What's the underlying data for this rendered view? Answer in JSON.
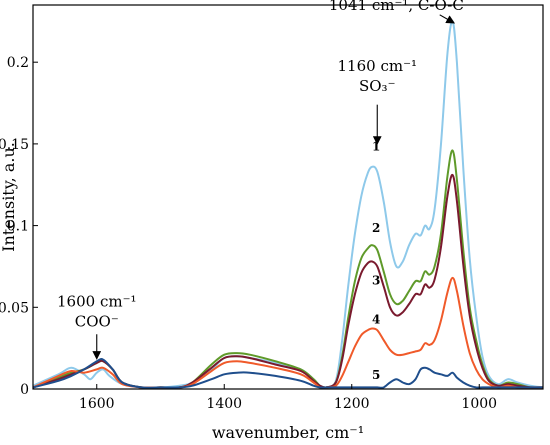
{
  "chart_data": {
    "type": "line",
    "xlabel": "wavenumber, cm⁻¹",
    "ylabel": "Intensity, a.u.",
    "xlim": [
      1700,
      900
    ],
    "ylim": [
      0,
      0.235
    ],
    "x_reversed": true,
    "grid": false,
    "legend": "none",
    "xticks": [
      1600,
      1400,
      1200,
      1000
    ],
    "yticks": [
      0,
      0.05,
      0.1,
      0.15,
      0.2
    ],
    "ytick_labels": [
      "0",
      "0.05",
      "0.1",
      "0.15",
      "0.2"
    ],
    "series": [
      {
        "name": "1",
        "color": "#8ec9ea",
        "points": [
          [
            1700,
            0.002
          ],
          [
            1660,
            0.009
          ],
          [
            1640,
            0.013
          ],
          [
            1620,
            0.009
          ],
          [
            1610,
            0.006
          ],
          [
            1600,
            0.01
          ],
          [
            1590,
            0.012
          ],
          [
            1580,
            0.008
          ],
          [
            1560,
            0.003
          ],
          [
            1530,
            0.001
          ],
          [
            1500,
            0.001
          ],
          [
            1470,
            0.002
          ],
          [
            1450,
            0.004
          ],
          [
            1420,
            0.012
          ],
          [
            1400,
            0.019
          ],
          [
            1380,
            0.02
          ],
          [
            1360,
            0.019
          ],
          [
            1320,
            0.016
          ],
          [
            1280,
            0.012
          ],
          [
            1260,
            0.006
          ],
          [
            1250,
            0.002
          ],
          [
            1240,
            0.001
          ],
          [
            1225,
            0.005
          ],
          [
            1215,
            0.03
          ],
          [
            1205,
            0.065
          ],
          [
            1195,
            0.095
          ],
          [
            1185,
            0.118
          ],
          [
            1175,
            0.132
          ],
          [
            1168,
            0.136
          ],
          [
            1160,
            0.133
          ],
          [
            1150,
            0.115
          ],
          [
            1140,
            0.09
          ],
          [
            1130,
            0.075
          ],
          [
            1120,
            0.078
          ],
          [
            1110,
            0.088
          ],
          [
            1100,
            0.095
          ],
          [
            1092,
            0.094
          ],
          [
            1085,
            0.1
          ],
          [
            1078,
            0.098
          ],
          [
            1070,
            0.11
          ],
          [
            1060,
            0.15
          ],
          [
            1050,
            0.205
          ],
          [
            1042,
            0.225
          ],
          [
            1035,
            0.2
          ],
          [
            1025,
            0.135
          ],
          [
            1015,
            0.08
          ],
          [
            1005,
            0.045
          ],
          [
            995,
            0.02
          ],
          [
            985,
            0.008
          ],
          [
            970,
            0.003
          ],
          [
            955,
            0.006
          ],
          [
            940,
            0.004
          ],
          [
            920,
            0.002
          ],
          [
            900,
            0.001
          ]
        ]
      },
      {
        "name": "2",
        "color": "#5f9a2a",
        "points": [
          [
            1700,
            0.001
          ],
          [
            1660,
            0.007
          ],
          [
            1640,
            0.01
          ],
          [
            1620,
            0.012
          ],
          [
            1600,
            0.016
          ],
          [
            1590,
            0.017
          ],
          [
            1575,
            0.012
          ],
          [
            1560,
            0.004
          ],
          [
            1530,
            0.001
          ],
          [
            1500,
            0.001
          ],
          [
            1470,
            0.001
          ],
          [
            1450,
            0.004
          ],
          [
            1420,
            0.015
          ],
          [
            1400,
            0.021
          ],
          [
            1380,
            0.022
          ],
          [
            1360,
            0.021
          ],
          [
            1320,
            0.017
          ],
          [
            1280,
            0.012
          ],
          [
            1260,
            0.006
          ],
          [
            1250,
            0.002
          ],
          [
            1240,
            0.001
          ],
          [
            1225,
            0.004
          ],
          [
            1215,
            0.02
          ],
          [
            1205,
            0.045
          ],
          [
            1195,
            0.066
          ],
          [
            1185,
            0.08
          ],
          [
            1175,
            0.086
          ],
          [
            1168,
            0.088
          ],
          [
            1160,
            0.085
          ],
          [
            1150,
            0.072
          ],
          [
            1140,
            0.058
          ],
          [
            1130,
            0.052
          ],
          [
            1120,
            0.054
          ],
          [
            1110,
            0.06
          ],
          [
            1100,
            0.066
          ],
          [
            1092,
            0.066
          ],
          [
            1085,
            0.072
          ],
          [
            1078,
            0.07
          ],
          [
            1070,
            0.075
          ],
          [
            1060,
            0.095
          ],
          [
            1050,
            0.13
          ],
          [
            1042,
            0.146
          ],
          [
            1035,
            0.128
          ],
          [
            1025,
            0.085
          ],
          [
            1015,
            0.05
          ],
          [
            1005,
            0.03
          ],
          [
            995,
            0.015
          ],
          [
            985,
            0.006
          ],
          [
            970,
            0.002
          ],
          [
            955,
            0.004
          ],
          [
            940,
            0.003
          ],
          [
            920,
            0.001
          ],
          [
            900,
            0.001
          ]
        ]
      },
      {
        "name": "3",
        "color": "#7a1a2e",
        "points": [
          [
            1700,
            0.001
          ],
          [
            1660,
            0.006
          ],
          [
            1640,
            0.009
          ],
          [
            1620,
            0.012
          ],
          [
            1600,
            0.016
          ],
          [
            1590,
            0.017
          ],
          [
            1575,
            0.012
          ],
          [
            1560,
            0.004
          ],
          [
            1530,
            0.001
          ],
          [
            1500,
            0.001
          ],
          [
            1470,
            0.001
          ],
          [
            1450,
            0.004
          ],
          [
            1420,
            0.013
          ],
          [
            1400,
            0.019
          ],
          [
            1380,
            0.02
          ],
          [
            1360,
            0.019
          ],
          [
            1320,
            0.015
          ],
          [
            1280,
            0.011
          ],
          [
            1260,
            0.005
          ],
          [
            1250,
            0.002
          ],
          [
            1240,
            0.001
          ],
          [
            1225,
            0.004
          ],
          [
            1215,
            0.018
          ],
          [
            1205,
            0.04
          ],
          [
            1195,
            0.058
          ],
          [
            1185,
            0.071
          ],
          [
            1175,
            0.077
          ],
          [
            1168,
            0.078
          ],
          [
            1160,
            0.075
          ],
          [
            1150,
            0.063
          ],
          [
            1140,
            0.05
          ],
          [
            1130,
            0.045
          ],
          [
            1120,
            0.047
          ],
          [
            1110,
            0.052
          ],
          [
            1100,
            0.058
          ],
          [
            1092,
            0.058
          ],
          [
            1085,
            0.064
          ],
          [
            1078,
            0.062
          ],
          [
            1070,
            0.067
          ],
          [
            1060,
            0.087
          ],
          [
            1050,
            0.118
          ],
          [
            1042,
            0.131
          ],
          [
            1035,
            0.115
          ],
          [
            1025,
            0.076
          ],
          [
            1015,
            0.045
          ],
          [
            1005,
            0.026
          ],
          [
            995,
            0.013
          ],
          [
            985,
            0.005
          ],
          [
            970,
            0.002
          ],
          [
            955,
            0.003
          ],
          [
            940,
            0.002
          ],
          [
            920,
            0.001
          ],
          [
            900,
            0.001
          ]
        ]
      },
      {
        "name": "4",
        "color": "#f05a2a",
        "points": [
          [
            1700,
            0.001
          ],
          [
            1660,
            0.008
          ],
          [
            1640,
            0.011
          ],
          [
            1620,
            0.01
          ],
          [
            1600,
            0.012
          ],
          [
            1590,
            0.013
          ],
          [
            1575,
            0.009
          ],
          [
            1560,
            0.003
          ],
          [
            1530,
            0.001
          ],
          [
            1500,
            0.001
          ],
          [
            1470,
            0.001
          ],
          [
            1450,
            0.003
          ],
          [
            1420,
            0.011
          ],
          [
            1400,
            0.016
          ],
          [
            1380,
            0.017
          ],
          [
            1360,
            0.016
          ],
          [
            1320,
            0.013
          ],
          [
            1280,
            0.009
          ],
          [
            1260,
            0.004
          ],
          [
            1250,
            0.001
          ],
          [
            1240,
            0.001
          ],
          [
            1225,
            0.002
          ],
          [
            1215,
            0.008
          ],
          [
            1205,
            0.017
          ],
          [
            1195,
            0.026
          ],
          [
            1185,
            0.033
          ],
          [
            1175,
            0.036
          ],
          [
            1168,
            0.037
          ],
          [
            1160,
            0.036
          ],
          [
            1150,
            0.03
          ],
          [
            1140,
            0.024
          ],
          [
            1130,
            0.021
          ],
          [
            1120,
            0.021
          ],
          [
            1110,
            0.022
          ],
          [
            1100,
            0.023
          ],
          [
            1092,
            0.024
          ],
          [
            1085,
            0.028
          ],
          [
            1078,
            0.027
          ],
          [
            1070,
            0.03
          ],
          [
            1060,
            0.042
          ],
          [
            1050,
            0.059
          ],
          [
            1042,
            0.068
          ],
          [
            1035,
            0.06
          ],
          [
            1025,
            0.039
          ],
          [
            1015,
            0.022
          ],
          [
            1005,
            0.012
          ],
          [
            995,
            0.006
          ],
          [
            985,
            0.003
          ],
          [
            970,
            0.001
          ],
          [
            955,
            0.002
          ],
          [
            940,
            0.001
          ],
          [
            920,
            0.001
          ],
          [
            900,
            0.001
          ]
        ]
      },
      {
        "name": "5",
        "color": "#1f4e8c",
        "points": [
          [
            1700,
            0.001
          ],
          [
            1660,
            0.005
          ],
          [
            1640,
            0.008
          ],
          [
            1620,
            0.012
          ],
          [
            1600,
            0.017
          ],
          [
            1590,
            0.018
          ],
          [
            1575,
            0.012
          ],
          [
            1560,
            0.004
          ],
          [
            1530,
            0.001
          ],
          [
            1500,
            0.001
          ],
          [
            1470,
            0.001
          ],
          [
            1450,
            0.002
          ],
          [
            1420,
            0.006
          ],
          [
            1400,
            0.009
          ],
          [
            1380,
            0.01
          ],
          [
            1360,
            0.01
          ],
          [
            1320,
            0.008
          ],
          [
            1280,
            0.005
          ],
          [
            1260,
            0.002
          ],
          [
            1250,
            0.001
          ],
          [
            1240,
            0.001
          ],
          [
            1225,
            0.001
          ],
          [
            1215,
            0.001
          ],
          [
            1205,
            0.001
          ],
          [
            1195,
            0.001
          ],
          [
            1185,
            0.001
          ],
          [
            1175,
            0.001
          ],
          [
            1168,
            0.001
          ],
          [
            1160,
            0.001
          ],
          [
            1150,
            0.001
          ],
          [
            1140,
            0.004
          ],
          [
            1130,
            0.006
          ],
          [
            1120,
            0.004
          ],
          [
            1110,
            0.003
          ],
          [
            1100,
            0.006
          ],
          [
            1092,
            0.012
          ],
          [
            1085,
            0.013
          ],
          [
            1078,
            0.012
          ],
          [
            1070,
            0.01
          ],
          [
            1060,
            0.009
          ],
          [
            1050,
            0.008
          ],
          [
            1042,
            0.01
          ],
          [
            1035,
            0.007
          ],
          [
            1025,
            0.004
          ],
          [
            1015,
            0.002
          ],
          [
            1005,
            0.001
          ],
          [
            995,
            0.001
          ],
          [
            985,
            0.001
          ],
          [
            970,
            0.001
          ],
          [
            955,
            0.001
          ],
          [
            940,
            0.001
          ],
          [
            920,
            0.001
          ],
          [
            900,
            0.001
          ]
        ]
      }
    ],
    "curve_labels": [
      {
        "text": "1",
        "x": 1168,
        "y": 0.146
      },
      {
        "text": "2",
        "x": 1168,
        "y": 0.096
      },
      {
        "text": "3",
        "x": 1168,
        "y": 0.064
      },
      {
        "text": "4",
        "x": 1168,
        "y": 0.04
      },
      {
        "text": "5",
        "x": 1168,
        "y": 0.006
      }
    ],
    "annotations": [
      {
        "name": "annotation-coo",
        "lines": [
          "1600 cm⁻¹",
          "COO⁻"
        ],
        "x": 1600,
        "y": 0.0505,
        "arrow_from_y": 0.0335,
        "arrow_to_y": 0.0205
      },
      {
        "name": "annotation-so3",
        "lines": [
          "1160 cm⁻¹",
          "SO₃⁻"
        ],
        "x": 1160,
        "y": 0.1945,
        "arrow_from_y": 0.174,
        "arrow_to_y": 0.152
      },
      {
        "name": "annotation-coc",
        "lines": [
          "1041 cm⁻¹, C-O-C"
        ],
        "x": 1130,
        "y": 0.232,
        "arrow_from_y": 0.229,
        "arrow_to_y": 0.225,
        "arrow_from_x": 1062,
        "arrow_to_x": 1044
      }
    ]
  }
}
